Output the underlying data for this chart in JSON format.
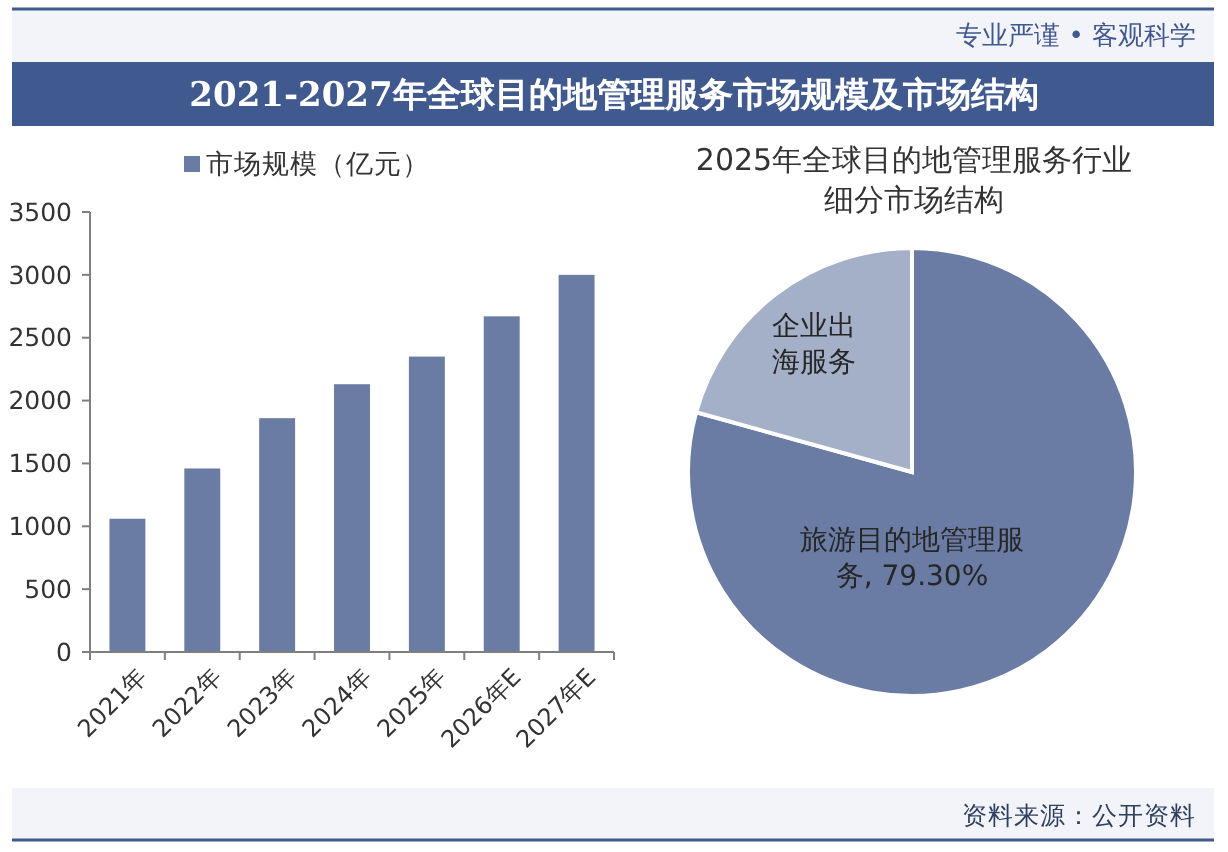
{
  "chart_data": [
    {
      "type": "bar",
      "title": "2021-2027年全球目的地管理服务市场规模及市场结构",
      "categories": [
        "2021年",
        "2022年",
        "2023年",
        "2024年",
        "2025年",
        "2026年E",
        "2027年E"
      ],
      "series": [
        {
          "name": "市场规模（亿元）",
          "color": "#6a7ca4",
          "values": [
            1060,
            1460,
            1860,
            2130,
            2350,
            2670,
            3000
          ]
        }
      ],
      "ylim": [
        0,
        3500
      ],
      "yticks": [
        0,
        500,
        1000,
        1500,
        2000,
        2500,
        3000,
        3500
      ],
      "legend": "top",
      "annotations": [
        "专业严谨 • 客观科学",
        "资料来源：公开资料"
      ]
    },
    {
      "type": "pie",
      "title": "2025年全球目的地管理服务行业细分市场结构",
      "categories": [
        "旅游目的地管理服务",
        "企业出海服务"
      ],
      "values": [
        79.3,
        20.7
      ],
      "colors": [
        "#6a7ca4",
        "#a3b0c8"
      ],
      "value_labels": [
        "79.30%",
        null
      ]
    }
  ]
}
